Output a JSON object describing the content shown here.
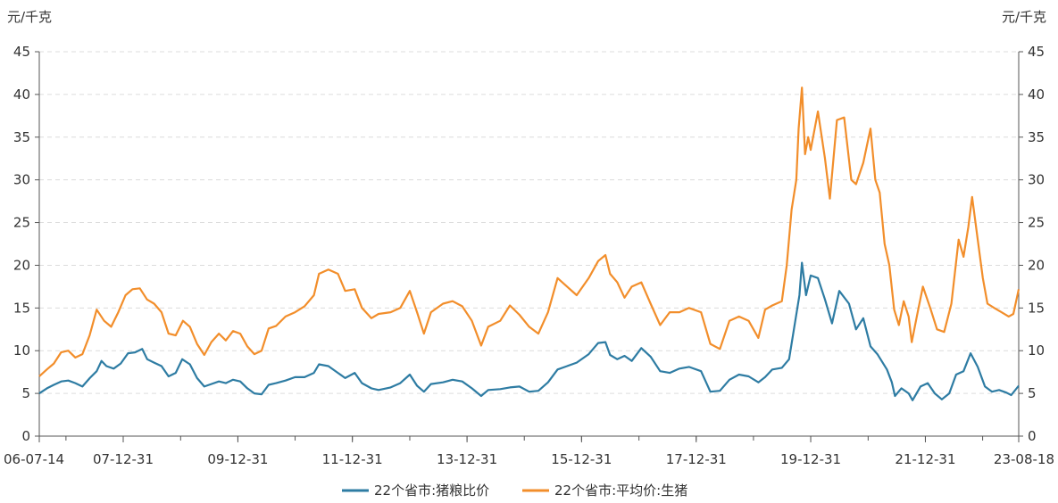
{
  "chart_data": {
    "type": "line",
    "left_unit": "元/千克",
    "right_unit": "元/千克",
    "ylim": [
      0,
      45
    ],
    "y_ticks": [
      0,
      5,
      10,
      15,
      20,
      25,
      30,
      35,
      40,
      45
    ],
    "grid": "horizontal dashed",
    "legend_position": "bottom-center",
    "x_range": [
      "2006-07-14",
      "2023-08-18"
    ],
    "x_ticks": [
      {
        "date": "2006-07-14",
        "label": "06-07-14"
      },
      {
        "date": "2007-12-31",
        "label": "07-12-31"
      },
      {
        "date": "2009-12-31",
        "label": "09-12-31"
      },
      {
        "date": "2011-12-31",
        "label": "11-12-31"
      },
      {
        "date": "2013-12-31",
        "label": "13-12-31"
      },
      {
        "date": "2015-12-31",
        "label": "15-12-31"
      },
      {
        "date": "2017-12-31",
        "label": "17-12-31"
      },
      {
        "date": "2019-12-31",
        "label": "19-12-31"
      },
      {
        "date": "2021-12-31",
        "label": "21-12-31"
      },
      {
        "date": "2023-08-18",
        "label": "23-08-18"
      }
    ],
    "series": [
      {
        "name": "22个省市:猪粮比价",
        "color": "#2e7ca3",
        "points": [
          [
            "2006-07-14",
            5.0
          ],
          [
            "2006-09-01",
            5.6
          ],
          [
            "2006-10-15",
            6.0
          ],
          [
            "2006-12-01",
            6.4
          ],
          [
            "2007-01-15",
            6.5
          ],
          [
            "2007-03-01",
            6.2
          ],
          [
            "2007-04-15",
            5.8
          ],
          [
            "2007-06-01",
            6.8
          ],
          [
            "2007-07-15",
            7.6
          ],
          [
            "2007-08-15",
            8.8
          ],
          [
            "2007-09-15",
            8.2
          ],
          [
            "2007-10-31",
            7.9
          ],
          [
            "2007-12-15",
            8.5
          ],
          [
            "2008-01-31",
            9.7
          ],
          [
            "2008-03-15",
            9.8
          ],
          [
            "2008-04-30",
            10.2
          ],
          [
            "2008-06-01",
            9.0
          ],
          [
            "2008-07-15",
            8.6
          ],
          [
            "2008-08-31",
            8.2
          ],
          [
            "2008-10-15",
            7.0
          ],
          [
            "2008-11-30",
            7.4
          ],
          [
            "2009-01-10",
            9.0
          ],
          [
            "2009-02-28",
            8.4
          ],
          [
            "2009-04-15",
            6.8
          ],
          [
            "2009-05-31",
            5.8
          ],
          [
            "2009-07-15",
            6.1
          ],
          [
            "2009-09-01",
            6.4
          ],
          [
            "2009-10-15",
            6.2
          ],
          [
            "2009-11-30",
            6.6
          ],
          [
            "2010-01-15",
            6.4
          ],
          [
            "2010-03-01",
            5.6
          ],
          [
            "2010-04-15",
            5.0
          ],
          [
            "2010-05-31",
            4.9
          ],
          [
            "2010-07-15",
            6.0
          ],
          [
            "2010-09-01",
            6.2
          ],
          [
            "2010-10-31",
            6.5
          ],
          [
            "2010-12-31",
            6.9
          ],
          [
            "2011-03-01",
            6.9
          ],
          [
            "2011-04-30",
            7.4
          ],
          [
            "2011-06-01",
            8.4
          ],
          [
            "2011-07-31",
            8.2
          ],
          [
            "2011-09-30",
            7.4
          ],
          [
            "2011-11-15",
            6.8
          ],
          [
            "2012-01-15",
            7.4
          ],
          [
            "2012-03-01",
            6.2
          ],
          [
            "2012-04-30",
            5.6
          ],
          [
            "2012-06-15",
            5.4
          ],
          [
            "2012-08-31",
            5.7
          ],
          [
            "2012-10-31",
            6.2
          ],
          [
            "2012-12-31",
            7.2
          ],
          [
            "2013-02-15",
            5.9
          ],
          [
            "2013-03-31",
            5.2
          ],
          [
            "2013-05-15",
            6.1
          ],
          [
            "2013-07-31",
            6.3
          ],
          [
            "2013-09-30",
            6.6
          ],
          [
            "2013-11-30",
            6.4
          ],
          [
            "2014-01-31",
            5.6
          ],
          [
            "2014-03-31",
            4.7
          ],
          [
            "2014-05-15",
            5.4
          ],
          [
            "2014-07-31",
            5.5
          ],
          [
            "2014-09-30",
            5.7
          ],
          [
            "2014-11-30",
            5.8
          ],
          [
            "2015-01-31",
            5.2
          ],
          [
            "2015-03-31",
            5.3
          ],
          [
            "2015-05-31",
            6.3
          ],
          [
            "2015-07-31",
            7.8
          ],
          [
            "2015-09-30",
            8.2
          ],
          [
            "2015-11-30",
            8.6
          ],
          [
            "2016-02-15",
            9.6
          ],
          [
            "2016-04-15",
            10.9
          ],
          [
            "2016-05-31",
            11.0
          ],
          [
            "2016-06-30",
            9.5
          ],
          [
            "2016-08-15",
            9.0
          ],
          [
            "2016-09-30",
            9.4
          ],
          [
            "2016-11-15",
            8.8
          ],
          [
            "2017-01-15",
            10.3
          ],
          [
            "2017-03-15",
            9.3
          ],
          [
            "2017-05-15",
            7.6
          ],
          [
            "2017-07-15",
            7.4
          ],
          [
            "2017-09-15",
            7.9
          ],
          [
            "2017-11-15",
            8.1
          ],
          [
            "2018-01-31",
            7.6
          ],
          [
            "2018-03-31",
            5.2
          ],
          [
            "2018-05-31",
            5.3
          ],
          [
            "2018-07-31",
            6.6
          ],
          [
            "2018-09-30",
            7.2
          ],
          [
            "2018-11-30",
            7.0
          ],
          [
            "2019-01-31",
            6.3
          ],
          [
            "2019-03-15",
            6.9
          ],
          [
            "2019-04-30",
            7.8
          ],
          [
            "2019-06-30",
            8.0
          ],
          [
            "2019-08-15",
            9.0
          ],
          [
            "2019-09-15",
            12.5
          ],
          [
            "2019-10-20",
            16.5
          ],
          [
            "2019-11-05",
            20.3
          ],
          [
            "2019-12-01",
            16.5
          ],
          [
            "2019-12-31",
            18.8
          ],
          [
            "2020-02-15",
            18.5
          ],
          [
            "2020-03-31",
            16.0
          ],
          [
            "2020-05-15",
            13.2
          ],
          [
            "2020-06-30",
            17.0
          ],
          [
            "2020-08-31",
            15.5
          ],
          [
            "2020-10-15",
            12.5
          ],
          [
            "2020-11-30",
            13.8
          ],
          [
            "2021-01-15",
            10.5
          ],
          [
            "2021-02-28",
            9.6
          ],
          [
            "2021-04-30",
            7.8
          ],
          [
            "2021-05-31",
            6.3
          ],
          [
            "2021-06-20",
            4.7
          ],
          [
            "2021-07-31",
            5.6
          ],
          [
            "2021-09-15",
            5.0
          ],
          [
            "2021-10-10",
            4.2
          ],
          [
            "2021-11-30",
            5.8
          ],
          [
            "2022-01-15",
            6.2
          ],
          [
            "2022-03-01",
            5.0
          ],
          [
            "2022-04-15",
            4.3
          ],
          [
            "2022-06-01",
            5.0
          ],
          [
            "2022-07-15",
            7.2
          ],
          [
            "2022-08-31",
            7.6
          ],
          [
            "2022-10-15",
            9.7
          ],
          [
            "2022-11-30",
            8.1
          ],
          [
            "2023-01-15",
            5.8
          ],
          [
            "2023-03-01",
            5.2
          ],
          [
            "2023-04-15",
            5.4
          ],
          [
            "2023-05-31",
            5.1
          ],
          [
            "2023-07-01",
            4.8
          ],
          [
            "2023-08-18",
            5.9
          ]
        ]
      },
      {
        "name": "22个省市:平均价:生猪",
        "color": "#f28e2b",
        "points": [
          [
            "2006-07-14",
            7.0
          ],
          [
            "2006-08-31",
            7.8
          ],
          [
            "2006-10-15",
            8.5
          ],
          [
            "2006-11-30",
            9.8
          ],
          [
            "2007-01-15",
            10.0
          ],
          [
            "2007-03-01",
            9.2
          ],
          [
            "2007-04-15",
            9.6
          ],
          [
            "2007-05-31",
            11.8
          ],
          [
            "2007-07-15",
            14.8
          ],
          [
            "2007-08-31",
            13.5
          ],
          [
            "2007-10-15",
            12.8
          ],
          [
            "2007-11-30",
            14.5
          ],
          [
            "2008-01-15",
            16.5
          ],
          [
            "2008-02-28",
            17.2
          ],
          [
            "2008-04-15",
            17.3
          ],
          [
            "2008-05-31",
            16.0
          ],
          [
            "2008-07-15",
            15.5
          ],
          [
            "2008-08-31",
            14.5
          ],
          [
            "2008-10-15",
            12.0
          ],
          [
            "2008-11-30",
            11.8
          ],
          [
            "2009-01-15",
            13.5
          ],
          [
            "2009-02-28",
            12.8
          ],
          [
            "2009-04-15",
            10.8
          ],
          [
            "2009-05-31",
            9.5
          ],
          [
            "2009-07-15",
            11.0
          ],
          [
            "2009-09-01",
            12.0
          ],
          [
            "2009-10-15",
            11.2
          ],
          [
            "2009-11-30",
            12.3
          ],
          [
            "2010-01-15",
            12.0
          ],
          [
            "2010-03-01",
            10.5
          ],
          [
            "2010-04-15",
            9.6
          ],
          [
            "2010-05-31",
            10.0
          ],
          [
            "2010-07-15",
            12.6
          ],
          [
            "2010-09-01",
            12.9
          ],
          [
            "2010-10-31",
            14.0
          ],
          [
            "2010-12-31",
            14.5
          ],
          [
            "2011-03-01",
            15.2
          ],
          [
            "2011-04-30",
            16.5
          ],
          [
            "2011-06-01",
            19.0
          ],
          [
            "2011-07-31",
            19.5
          ],
          [
            "2011-09-30",
            19.0
          ],
          [
            "2011-11-15",
            17.0
          ],
          [
            "2012-01-15",
            17.2
          ],
          [
            "2012-03-01",
            15.0
          ],
          [
            "2012-04-30",
            13.8
          ],
          [
            "2012-06-15",
            14.3
          ],
          [
            "2012-08-31",
            14.5
          ],
          [
            "2012-10-31",
            15.0
          ],
          [
            "2012-12-31",
            17.0
          ],
          [
            "2013-02-15",
            14.5
          ],
          [
            "2013-03-31",
            12.0
          ],
          [
            "2013-05-15",
            14.5
          ],
          [
            "2013-07-31",
            15.5
          ],
          [
            "2013-09-30",
            15.8
          ],
          [
            "2013-11-30",
            15.2
          ],
          [
            "2014-01-31",
            13.5
          ],
          [
            "2014-03-31",
            10.6
          ],
          [
            "2014-05-15",
            12.8
          ],
          [
            "2014-07-31",
            13.5
          ],
          [
            "2014-09-30",
            15.3
          ],
          [
            "2014-11-30",
            14.2
          ],
          [
            "2015-01-31",
            12.8
          ],
          [
            "2015-03-31",
            12.0
          ],
          [
            "2015-05-31",
            14.5
          ],
          [
            "2015-07-31",
            18.5
          ],
          [
            "2015-09-30",
            17.5
          ],
          [
            "2015-11-30",
            16.5
          ],
          [
            "2016-02-15",
            18.5
          ],
          [
            "2016-04-15",
            20.5
          ],
          [
            "2016-05-31",
            21.2
          ],
          [
            "2016-06-30",
            19.0
          ],
          [
            "2016-08-15",
            18.0
          ],
          [
            "2016-09-30",
            16.2
          ],
          [
            "2016-11-15",
            17.5
          ],
          [
            "2017-01-15",
            18.0
          ],
          [
            "2017-03-15",
            15.5
          ],
          [
            "2017-05-15",
            13.0
          ],
          [
            "2017-07-15",
            14.5
          ],
          [
            "2017-09-15",
            14.5
          ],
          [
            "2017-11-15",
            15.0
          ],
          [
            "2018-01-31",
            14.5
          ],
          [
            "2018-03-31",
            10.8
          ],
          [
            "2018-05-31",
            10.2
          ],
          [
            "2018-07-31",
            13.5
          ],
          [
            "2018-09-30",
            14.0
          ],
          [
            "2018-11-30",
            13.5
          ],
          [
            "2019-01-31",
            11.5
          ],
          [
            "2019-03-15",
            14.8
          ],
          [
            "2019-04-30",
            15.3
          ],
          [
            "2019-06-30",
            15.8
          ],
          [
            "2019-07-31",
            20.0
          ],
          [
            "2019-08-31",
            26.5
          ],
          [
            "2019-09-30",
            30.0
          ],
          [
            "2019-10-15",
            36.0
          ],
          [
            "2019-11-05",
            40.8
          ],
          [
            "2019-11-25",
            33.0
          ],
          [
            "2019-12-15",
            35.0
          ],
          [
            "2019-12-31",
            33.5
          ],
          [
            "2020-02-15",
            38.0
          ],
          [
            "2020-03-31",
            32.5
          ],
          [
            "2020-05-01",
            27.8
          ],
          [
            "2020-06-15",
            37.0
          ],
          [
            "2020-07-31",
            37.3
          ],
          [
            "2020-09-15",
            30.0
          ],
          [
            "2020-10-15",
            29.5
          ],
          [
            "2020-11-30",
            32.0
          ],
          [
            "2021-01-15",
            36.0
          ],
          [
            "2021-02-15",
            30.0
          ],
          [
            "2021-03-15",
            28.5
          ],
          [
            "2021-04-15",
            22.5
          ],
          [
            "2021-05-15",
            20.0
          ],
          [
            "2021-06-15",
            14.8
          ],
          [
            "2021-07-15",
            13.0
          ],
          [
            "2021-08-15",
            15.8
          ],
          [
            "2021-09-15",
            14.0
          ],
          [
            "2021-10-05",
            11.0
          ],
          [
            "2021-11-15",
            14.8
          ],
          [
            "2021-12-15",
            17.5
          ],
          [
            "2022-01-31",
            15.0
          ],
          [
            "2022-03-15",
            12.5
          ],
          [
            "2022-04-30",
            12.2
          ],
          [
            "2022-06-15",
            15.5
          ],
          [
            "2022-07-31",
            23.0
          ],
          [
            "2022-08-31",
            21.0
          ],
          [
            "2022-10-01",
            24.5
          ],
          [
            "2022-10-25",
            28.0
          ],
          [
            "2022-11-30",
            23.0
          ],
          [
            "2023-01-01",
            18.5
          ],
          [
            "2023-01-31",
            15.5
          ],
          [
            "2023-03-15",
            15.0
          ],
          [
            "2023-04-30",
            14.5
          ],
          [
            "2023-06-15",
            14.0
          ],
          [
            "2023-07-15",
            14.3
          ],
          [
            "2023-08-18",
            17.2
          ]
        ]
      }
    ]
  }
}
